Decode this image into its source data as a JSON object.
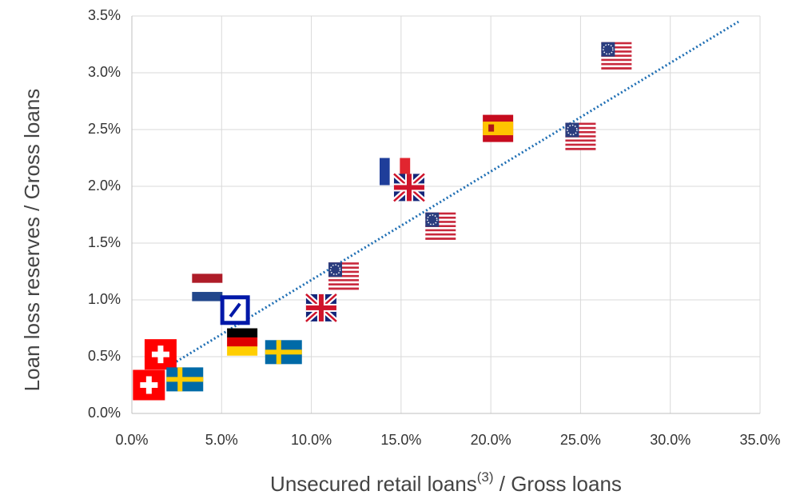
{
  "chart_data": {
    "type": "scatter",
    "xlabel": [
      "Unsecured retail loans",
      "(3)",
      " / Gross loans"
    ],
    "ylabel": "Loan loss reserves / Gross loans",
    "xlim": [
      0,
      35
    ],
    "ylim": [
      0,
      3.5
    ],
    "xticks": [
      {
        "value": 0,
        "label": "0.0%"
      },
      {
        "value": 5,
        "label": "5.0%"
      },
      {
        "value": 10,
        "label": "10.0%"
      },
      {
        "value": 15,
        "label": "15.0%"
      },
      {
        "value": 20,
        "label": "20.0%"
      },
      {
        "value": 25,
        "label": "25.0%"
      },
      {
        "value": 30,
        "label": "30.0%"
      },
      {
        "value": 35,
        "label": "35.0%"
      }
    ],
    "yticks": [
      {
        "value": 0,
        "label": "0.0%"
      },
      {
        "value": 0.5,
        "label": "0.5%"
      },
      {
        "value": 1,
        "label": "1.0%"
      },
      {
        "value": 1.5,
        "label": "1.5%"
      },
      {
        "value": 2,
        "label": "2.0%"
      },
      {
        "value": 2.5,
        "label": "2.5%"
      },
      {
        "value": 3,
        "label": "3.0%"
      },
      {
        "value": 3.5,
        "label": "3.5%"
      }
    ],
    "grid": true,
    "x": [
      27.0,
      20.4,
      25.0,
      14.65,
      15.45,
      17.2,
      11.8,
      10.55,
      4.2,
      5.75,
      6.15,
      8.45,
      1.6,
      2.95,
      0.95
    ],
    "y": [
      3.15,
      2.51,
      2.44,
      2.13,
      1.99,
      1.65,
      1.21,
      0.93,
      1.11,
      0.91,
      0.63,
      0.54,
      0.52,
      0.3,
      0.25
    ],
    "markers": [
      "us",
      "es",
      "us",
      "fr",
      "gb",
      "us",
      "us",
      "gb",
      "nl",
      "db",
      "de",
      "se",
      "ch",
      "se",
      "ch"
    ],
    "trendline": {
      "x": [
        2.1,
        33.8
      ],
      "y": [
        0.42,
        3.45
      ],
      "color": "#1f6fb4"
    }
  }
}
